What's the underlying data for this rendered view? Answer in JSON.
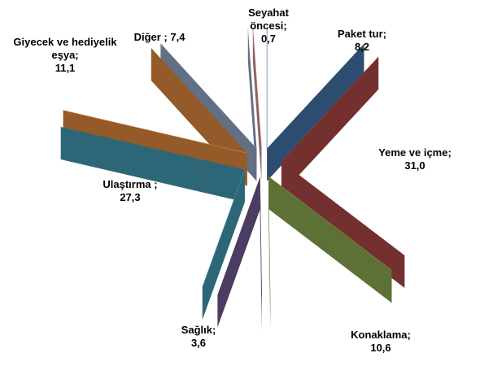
{
  "chart_data": {
    "type": "pie3d",
    "categories": [
      "Paket tur;",
      "Yeme ve içme;",
      "Konaklama;",
      "Sağlık;",
      "Ulaştırma ;",
      "Giyecek ve hediyelik eşya;",
      "Diğer ;",
      "Seyahat öncesi;"
    ],
    "values": [
      8.2,
      31.0,
      10.6,
      3.6,
      27.3,
      11.1,
      7.4,
      0.7
    ],
    "value_labels": [
      "8,2",
      "31,0",
      "10,6",
      "3,6",
      "27,3",
      "11,1",
      "7,4",
      "0,7"
    ],
    "colors": [
      "#4a7ebb",
      "#c0504d",
      "#9bbb59",
      "#8064a2",
      "#4bacc6",
      "#f79646",
      "#a5b9db",
      "#e6a3a1"
    ]
  }
}
